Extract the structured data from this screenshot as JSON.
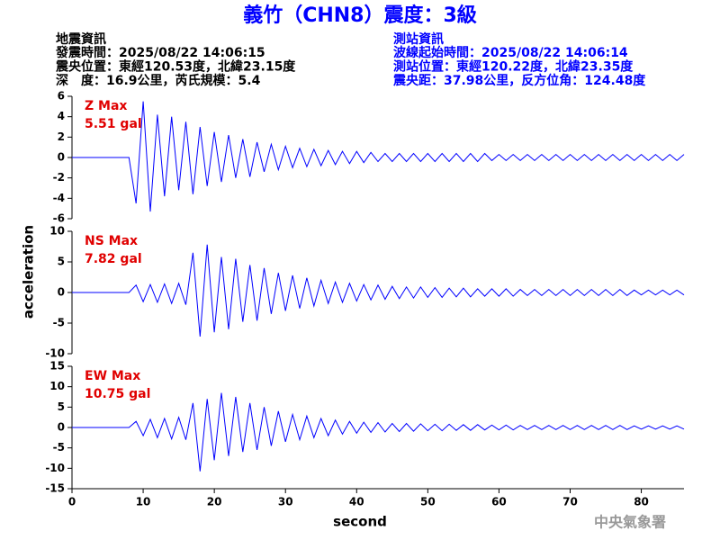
{
  "title": "義竹（CHN8）震度：3級",
  "event_info": {
    "heading": "地震資訊",
    "lines": [
      "發震時間：2025/08/22 14:06:15",
      "震央位置：東經120.53度，北緯23.15度",
      "深　度：16.9公里，芮氏規模：5.4"
    ]
  },
  "station_info": {
    "heading": "測站資訊",
    "lines": [
      "波線起始時間：2025/08/22 14:06:14",
      "測站位置：東經120.22度，北緯23.35度",
      "震央距：37.98公里，反方位角：124.48度"
    ]
  },
  "ylabel": "acceleration",
  "xlabel": "second",
  "credit": "中央氣象署",
  "chart_data": [
    {
      "type": "line",
      "annotation": "Z Max",
      "max_label": "5.51 gal",
      "color": "#0000ff",
      "xlim": [
        0,
        86
      ],
      "ylim": [
        -6,
        6
      ],
      "yticks": [
        -6,
        -4,
        -2,
        0,
        2,
        4,
        6
      ],
      "x": [
        0,
        1,
        2,
        3,
        4,
        5,
        6,
        7,
        8,
        9,
        10,
        11,
        12,
        13,
        14,
        15,
        16,
        17,
        18,
        19,
        20,
        21,
        22,
        23,
        24,
        25,
        26,
        27,
        28,
        29,
        30,
        31,
        32,
        33,
        34,
        35,
        36,
        37,
        38,
        39,
        40,
        41,
        42,
        43,
        44,
        45,
        46,
        47,
        48,
        49,
        50,
        51,
        52,
        53,
        54,
        55,
        56,
        57,
        58,
        59,
        60,
        61,
        62,
        63,
        64,
        65,
        66,
        67,
        68,
        69,
        70,
        71,
        72,
        73,
        74,
        75,
        76,
        77,
        78,
        79,
        80,
        81,
        82,
        83,
        84,
        85,
        86
      ],
      "values": [
        0,
        0,
        0,
        0,
        0,
        0,
        0,
        0,
        0,
        -4.5,
        5.51,
        -5.3,
        4.2,
        -3.8,
        4,
        -3.2,
        3.5,
        -3.6,
        3,
        -2.8,
        2.5,
        -2.4,
        2.2,
        -2,
        1.8,
        -1.9,
        1.5,
        -1.4,
        1.3,
        -1.2,
        1.1,
        -1,
        0.9,
        -0.9,
        0.8,
        -0.8,
        0.7,
        -0.7,
        0.6,
        -0.6,
        0.6,
        -0.5,
        0.5,
        -0.4,
        0.4,
        -0.4,
        0.4,
        -0.4,
        0.4,
        -0.4,
        0.4,
        -0.4,
        0.4,
        -0.4,
        0.4,
        -0.4,
        0.4,
        -0.4,
        0.4,
        -0.3,
        0.3,
        -0.3,
        0.3,
        -0.3,
        0.3,
        -0.3,
        0.3,
        -0.3,
        0.3,
        -0.3,
        0.3,
        -0.3,
        0.3,
        -0.3,
        0.3,
        -0.3,
        0.3,
        -0.3,
        0.3,
        -0.3,
        0.3,
        -0.3,
        0.3,
        -0.3,
        0.3,
        -0.3,
        0.3
      ]
    },
    {
      "type": "line",
      "annotation": "NS Max",
      "max_label": "7.82 gal",
      "color": "#0000ff",
      "xlim": [
        0,
        86
      ],
      "ylim": [
        -10,
        10
      ],
      "yticks": [
        -10,
        -5,
        0,
        5,
        10
      ],
      "x": [
        0,
        1,
        2,
        3,
        4,
        5,
        6,
        7,
        8,
        9,
        10,
        11,
        12,
        13,
        14,
        15,
        16,
        17,
        18,
        19,
        20,
        21,
        22,
        23,
        24,
        25,
        26,
        27,
        28,
        29,
        30,
        31,
        32,
        33,
        34,
        35,
        36,
        37,
        38,
        39,
        40,
        41,
        42,
        43,
        44,
        45,
        46,
        47,
        48,
        49,
        50,
        51,
        52,
        53,
        54,
        55,
        56,
        57,
        58,
        59,
        60,
        61,
        62,
        63,
        64,
        65,
        66,
        67,
        68,
        69,
        70,
        71,
        72,
        73,
        74,
        75,
        76,
        77,
        78,
        79,
        80,
        81,
        82,
        83,
        84,
        85,
        86
      ],
      "values": [
        0,
        0,
        0,
        0,
        0,
        0,
        0,
        0,
        0,
        1.2,
        -1.5,
        1.3,
        -1.6,
        1.4,
        -1.8,
        1.5,
        -2,
        6.5,
        -7.2,
        7.82,
        -6.5,
        5.8,
        -6,
        5.5,
        -4.8,
        4.5,
        -4.6,
        4,
        -3.5,
        3.2,
        -3,
        2.8,
        -2.6,
        2.4,
        -2.2,
        2,
        -1.8,
        1.7,
        -1.6,
        1.5,
        -1.4,
        1.3,
        -1.2,
        1.2,
        -1.1,
        1,
        -1,
        0.9,
        -0.9,
        0.9,
        -0.8,
        0.8,
        -0.8,
        0.7,
        -0.7,
        0.7,
        -0.7,
        0.6,
        -0.6,
        0.6,
        -0.6,
        0.6,
        -0.6,
        0.5,
        -0.5,
        0.5,
        -0.5,
        0.5,
        -0.5,
        0.5,
        -0.5,
        0.5,
        -0.5,
        0.5,
        -0.5,
        0.5,
        -0.5,
        0.5,
        -0.5,
        0.4,
        -0.4,
        0.4,
        -0.4,
        0.4,
        -0.4,
        0.4,
        -0.4
      ]
    },
    {
      "type": "line",
      "annotation": "EW Max",
      "max_label": "10.75 gal",
      "color": "#0000ff",
      "xlim": [
        0,
        86
      ],
      "ylim": [
        -15,
        15
      ],
      "yticks": [
        -15,
        -10,
        -5,
        0,
        5,
        10,
        15
      ],
      "xticks": [
        0,
        10,
        20,
        30,
        40,
        50,
        60,
        70,
        80
      ],
      "x": [
        0,
        1,
        2,
        3,
        4,
        5,
        6,
        7,
        8,
        9,
        10,
        11,
        12,
        13,
        14,
        15,
        16,
        17,
        18,
        19,
        20,
        21,
        22,
        23,
        24,
        25,
        26,
        27,
        28,
        29,
        30,
        31,
        32,
        33,
        34,
        35,
        36,
        37,
        38,
        39,
        40,
        41,
        42,
        43,
        44,
        45,
        46,
        47,
        48,
        49,
        50,
        51,
        52,
        53,
        54,
        55,
        56,
        57,
        58,
        59,
        60,
        61,
        62,
        63,
        64,
        65,
        66,
        67,
        68,
        69,
        70,
        71,
        72,
        73,
        74,
        75,
        76,
        77,
        78,
        79,
        80,
        81,
        82,
        83,
        84,
        85,
        86
      ],
      "values": [
        0,
        0,
        0,
        0,
        0,
        0,
        0,
        0,
        0,
        1.5,
        -2,
        2,
        -2.5,
        2.2,
        -2.8,
        2.5,
        -3,
        6,
        -10.75,
        7,
        -8,
        8.5,
        -7,
        7.5,
        -6,
        6,
        -5.5,
        5,
        -4.5,
        4,
        -3.5,
        3.2,
        -3,
        2.8,
        -2.5,
        2.2,
        -2,
        1.8,
        -1.6,
        1.5,
        -1.4,
        1.3,
        -1.2,
        1.2,
        -1.1,
        1,
        -1,
        1,
        -0.9,
        0.9,
        -0.8,
        0.8,
        -0.8,
        0.8,
        -0.7,
        0.7,
        -0.7,
        0.7,
        -0.6,
        0.6,
        -0.6,
        0.6,
        -0.6,
        0.5,
        -0.5,
        0.5,
        -0.5,
        0.5,
        -0.5,
        0.5,
        -0.5,
        0.5,
        -0.5,
        0.5,
        -0.5,
        0.5,
        -0.5,
        0.5,
        -0.5,
        0.4,
        -0.4,
        0.4,
        -0.4,
        0.4,
        -0.4,
        0.4,
        -0.4
      ]
    }
  ]
}
